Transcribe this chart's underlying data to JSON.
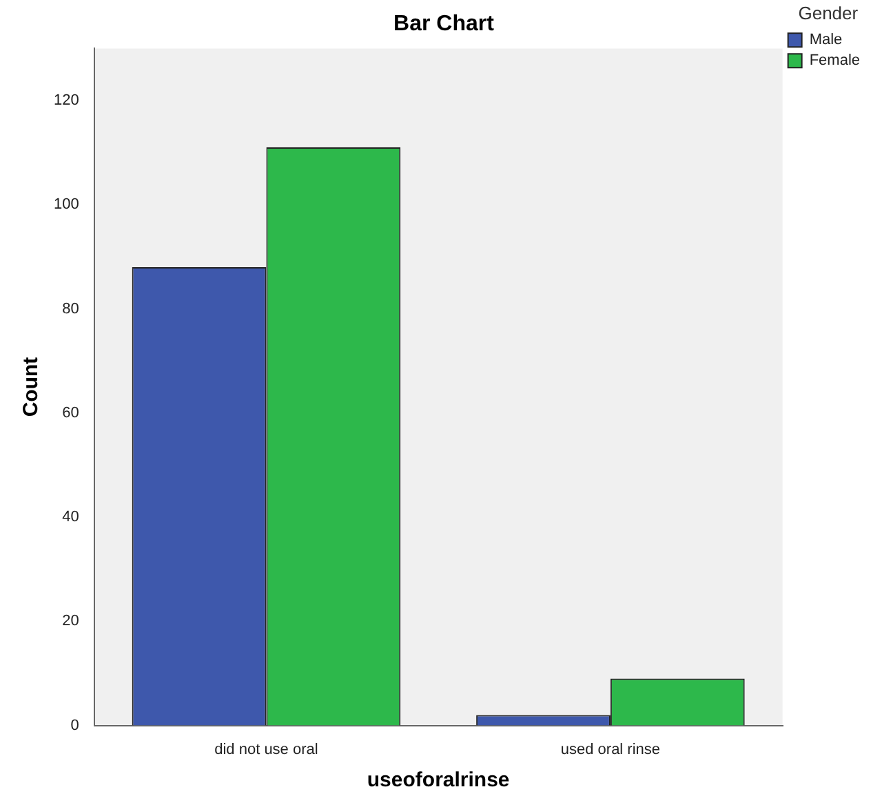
{
  "chart_data": {
    "type": "bar",
    "title": "Bar Chart",
    "xlabel": "useoforalrinse",
    "ylabel": "Count",
    "legend_title": "Gender",
    "categories": [
      "did not use oral",
      "used oral rinse"
    ],
    "series": [
      {
        "name": "Male",
        "color": "#3e58ac",
        "values": [
          88,
          2
        ]
      },
      {
        "name": "Female",
        "color": "#2db84b",
        "values": [
          111,
          9
        ]
      }
    ],
    "ylim": [
      0,
      130
    ],
    "yticks": [
      0,
      20,
      40,
      60,
      80,
      100,
      120
    ],
    "grid": false,
    "legend": "top right"
  }
}
